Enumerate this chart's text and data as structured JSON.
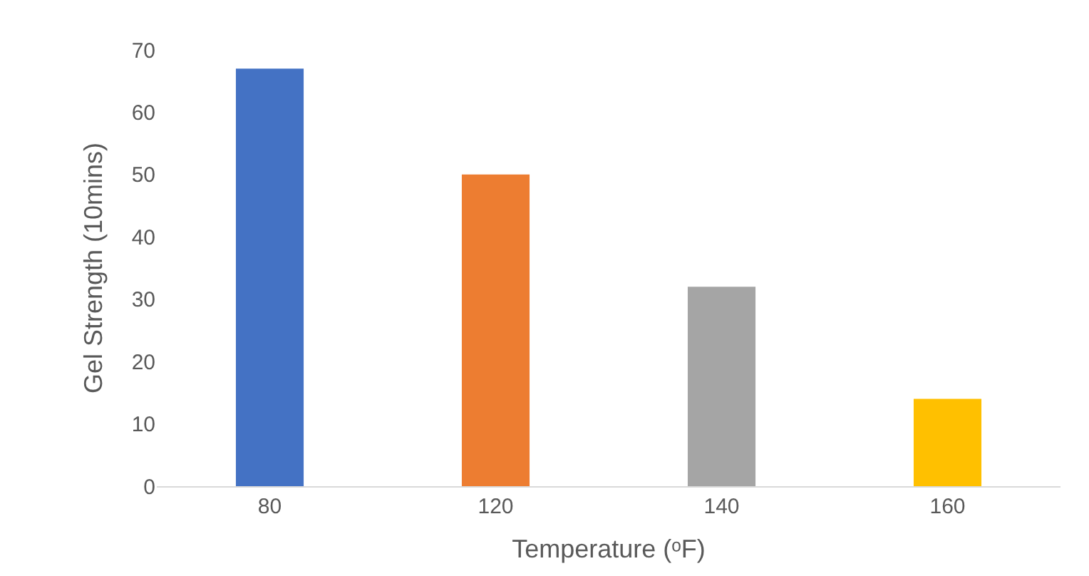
{
  "chart_data": {
    "type": "bar",
    "categories": [
      "80",
      "120",
      "140",
      "160"
    ],
    "values": [
      67,
      50,
      32,
      14
    ],
    "colors": [
      "#4472c4",
      "#ed7d31",
      "#a5a5a5",
      "#ffc000"
    ],
    "xlabel": "Temperature (ᵒF)",
    "ylabel": "Gel Strength (10mins)",
    "ylim": [
      0,
      70
    ],
    "yticks": [
      0,
      10,
      20,
      30,
      40,
      50,
      60,
      70
    ],
    "grid": false
  }
}
